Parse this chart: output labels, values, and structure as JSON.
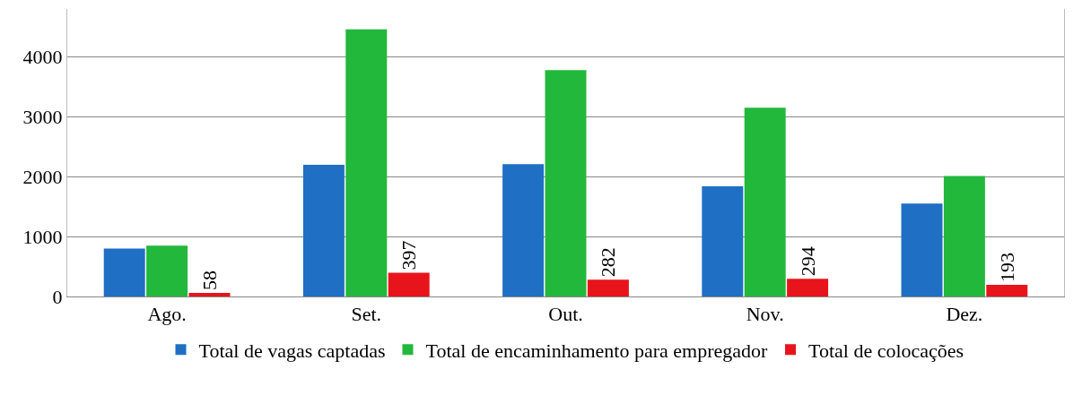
{
  "chart_data": {
    "type": "bar",
    "categories": [
      "Ago.",
      "Set.",
      "Out.",
      "Nov.",
      "Dez."
    ],
    "series": [
      {
        "name": "Total de vagas captadas",
        "color": "#1f6fc5",
        "values": [
          800,
          2200,
          2210,
          1840,
          1550
        ]
      },
      {
        "name": "Total de encaminhamento para empregador",
        "color": "#22b83c",
        "values": [
          850,
          4460,
          3780,
          3150,
          2010
        ]
      },
      {
        "name": "Total de colocações",
        "color": "#e8141c",
        "values": [
          58,
          397,
          282,
          294,
          193
        ],
        "value_labels": [
          "58",
          "397",
          "282",
          "294",
          "193"
        ]
      }
    ],
    "ylim": [
      0,
      4800
    ],
    "yticks": [
      0,
      1000,
      2000,
      3000,
      4000
    ],
    "grid": "y",
    "legend": "bottom"
  }
}
